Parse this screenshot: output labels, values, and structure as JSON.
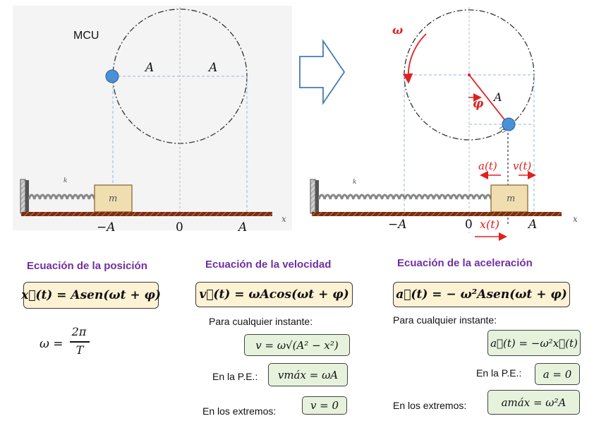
{
  "left_panel": {
    "mcu_label": "MCU",
    "radius_label_left": "A",
    "radius_label_right": "A",
    "spring_label": "k",
    "mass_label": "m",
    "axis_ticks": [
      "−A",
      "0",
      "A"
    ],
    "axis_name": "x"
  },
  "right_panel": {
    "omega_label": "ω",
    "radius_label": "A",
    "phase_label": "φ",
    "spring_label": "k",
    "mass_label": "m",
    "accel_label": "a(t)",
    "vel_label": "v(t)",
    "pos_label": "x(t)",
    "axis_ticks": [
      "−A",
      "0",
      "A"
    ],
    "axis_name": "x"
  },
  "position": {
    "heading": "Ecuación de la posición",
    "equation": "x⃗(t) = Asen(ωt + φ)",
    "omega_lhs": "ω =",
    "omega_num": "2π",
    "omega_den": "T"
  },
  "velocity": {
    "heading": "Ecuación de la velocidad",
    "equation": "v⃗(t) = ωAcos(ωt + φ)",
    "any_instant_label": "Para cualquier instante:",
    "any_instant_eq": "v = ω√(A² − x²)",
    "pe_label": "En la P.E.:",
    "pe_eq": "vmáx = ωA",
    "extremes_label": "En los extremos:",
    "extremes_eq": "v = 0"
  },
  "acceleration": {
    "heading": "Ecuación de la aceleración",
    "equation": "a⃗(t) = − ω²Asen(ωt + φ)",
    "any_instant_label": "Para cualquier instante:",
    "any_instant_eq": "a⃗(t) = −ω²x⃗(t)",
    "pe_label": "En la P.E.:",
    "pe_eq": "a = 0",
    "extremes_label": "En los extremos:",
    "extremes_eq": "amáx = ω²A"
  },
  "colors": {
    "circle": "#333333",
    "guide": "#8fb8dd",
    "ball": "#4a90d9",
    "floor": "#8b3a1a",
    "mass_fill": "#f1deb0",
    "vector": "#e02020",
    "heading": "#7030a0",
    "main_box": "#fdf2d4",
    "sub_box": "#e6f2dc"
  }
}
